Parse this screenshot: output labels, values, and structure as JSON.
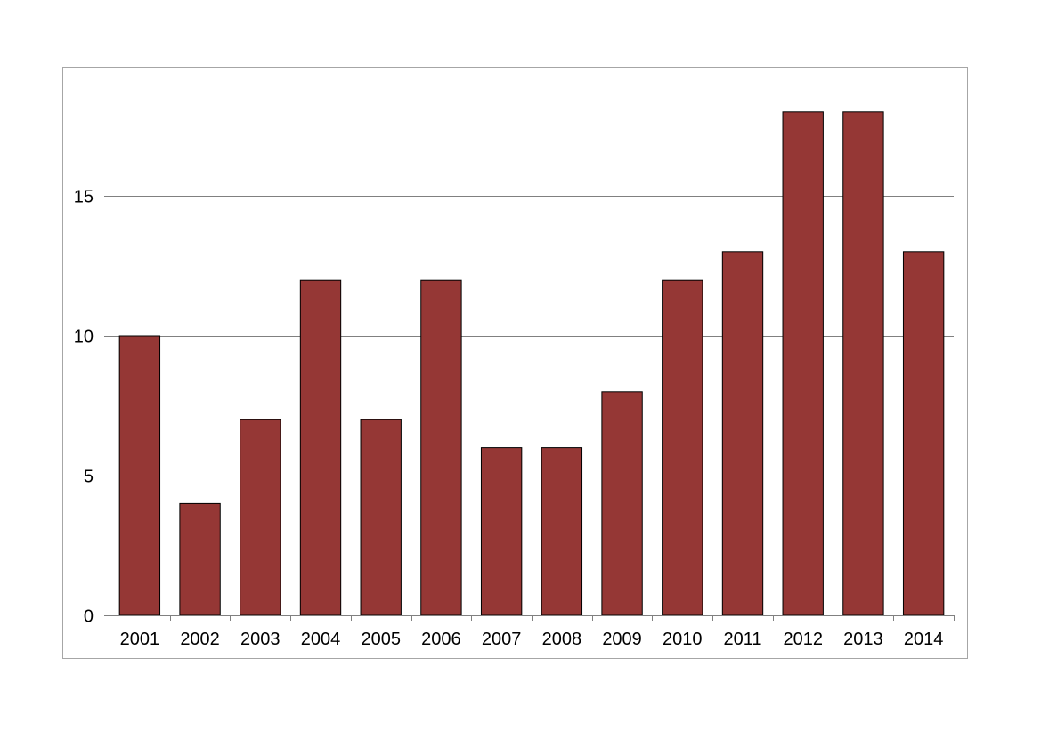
{
  "chart_data": {
    "type": "bar",
    "title": "",
    "xlabel": "",
    "ylabel": "",
    "categories": [
      "2001",
      "2002",
      "2003",
      "2004",
      "2005",
      "2006",
      "2007",
      "2008",
      "2009",
      "2010",
      "2011",
      "2012",
      "2013",
      "2014"
    ],
    "values": [
      10,
      4,
      7,
      12,
      7,
      12,
      6,
      6,
      8,
      12,
      13,
      18,
      18,
      13
    ],
    "ylim": [
      0,
      19
    ],
    "yticks": [
      0,
      5,
      10,
      15
    ],
    "ytick_labels": [
      "0",
      "5",
      "10",
      "15"
    ],
    "grid": true,
    "legend": "none",
    "colors": {
      "bar": "#953735",
      "bar_edge": "#000000",
      "grid": "#808080",
      "axis": "#808080",
      "frame": "#a6a6a6"
    }
  }
}
